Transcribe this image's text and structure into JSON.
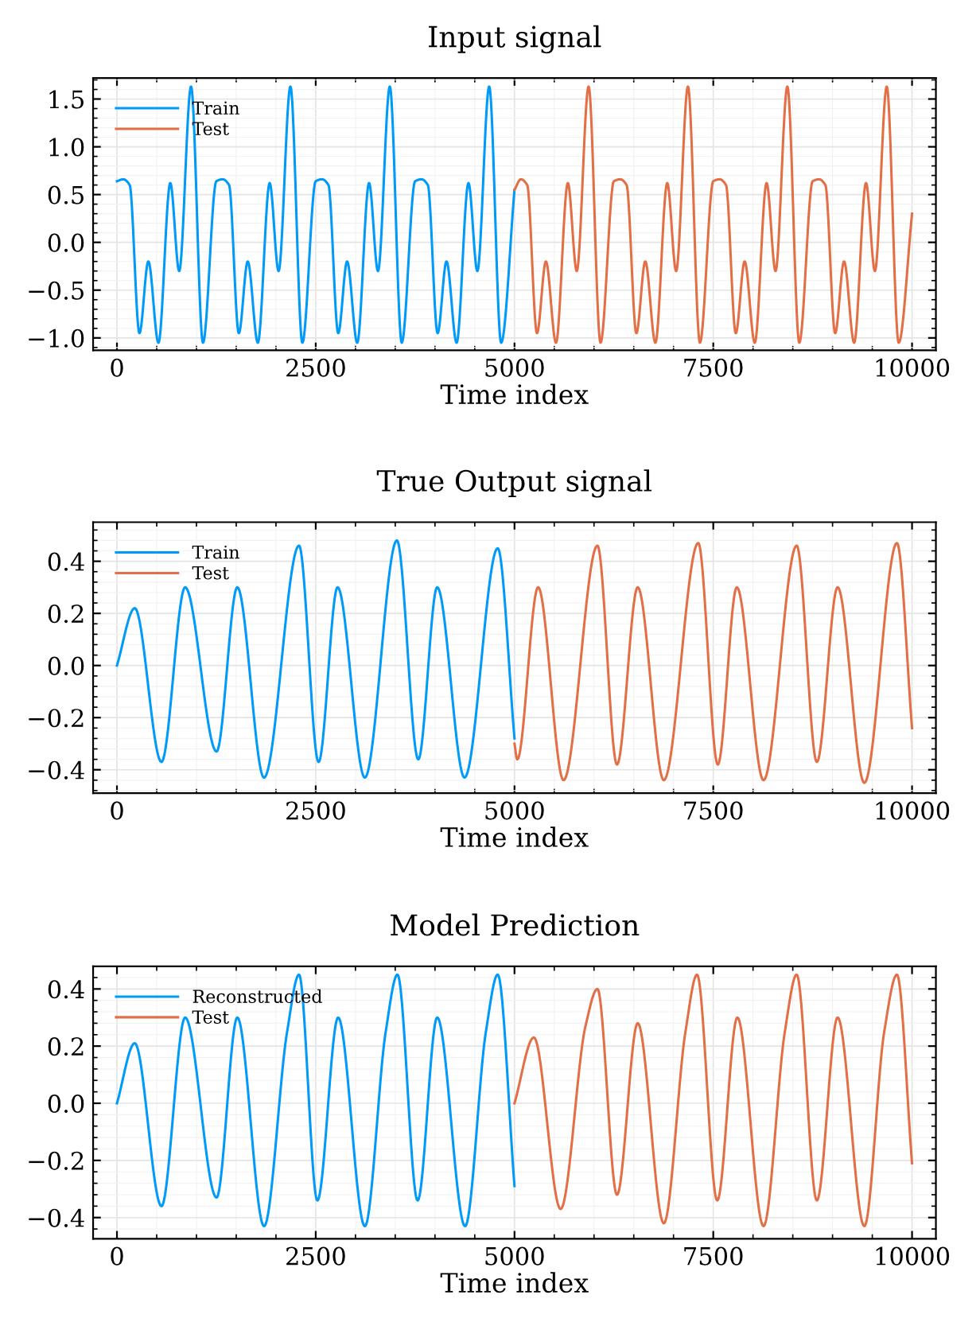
{
  "chart_data": [
    {
      "type": "line",
      "title": "Input signal",
      "xlabel": "Time index",
      "xlim": [
        -300,
        10300
      ],
      "ylim": [
        -1.13,
        1.72
      ],
      "xticks": [
        0,
        2500,
        5000,
        7500,
        10000
      ],
      "yticks": [
        {
          "value": -1.0,
          "label": "−1.0"
        },
        {
          "value": -0.5,
          "label": "−0.5"
        },
        {
          "value": 0.0,
          "label": "0.0"
        },
        {
          "value": 0.5,
          "label": "0.5"
        },
        {
          "value": 1.0,
          "label": "1.0"
        },
        {
          "value": 1.5,
          "label": "1.5"
        }
      ],
      "grid": true,
      "legend": "top left",
      "line_style": "solid",
      "series": [
        {
          "name": "Train",
          "color": "#009af9",
          "x": [
            0,
            80,
            160,
            283,
            395,
            522,
            671,
            783,
            932,
            1082,
            1250,
            1330,
            1410,
            1533,
            1645,
            1772,
            1921,
            2033,
            2182,
            2332,
            2500,
            2580,
            2660,
            2783,
            2895,
            3022,
            3171,
            3283,
            3432,
            3582,
            3750,
            3830,
            3910,
            4033,
            4145,
            4272,
            4421,
            4533,
            4682,
            4832,
            5000
          ],
          "values": [
            0.64,
            0.66,
            0.6,
            -0.95,
            -0.2,
            -1.05,
            0.62,
            -0.3,
            1.63,
            -1.05,
            0.64,
            0.66,
            0.6,
            -0.95,
            -0.2,
            -1.05,
            0.62,
            -0.3,
            1.63,
            -1.05,
            0.64,
            0.66,
            0.6,
            -0.95,
            -0.2,
            -1.05,
            0.62,
            -0.3,
            1.63,
            -1.05,
            0.64,
            0.66,
            0.6,
            -0.95,
            -0.2,
            -1.05,
            0.62,
            -0.3,
            1.63,
            -1.05,
            0.55
          ]
        },
        {
          "name": "Test",
          "color": "#e26f46",
          "x": [
            5000,
            5080,
            5160,
            5283,
            5395,
            5522,
            5671,
            5783,
            5932,
            6082,
            6250,
            6330,
            6410,
            6533,
            6645,
            6772,
            6921,
            7033,
            7182,
            7332,
            7500,
            7580,
            7660,
            7783,
            7895,
            8022,
            8171,
            8283,
            8432,
            8582,
            8750,
            8830,
            8910,
            9033,
            9145,
            9272,
            9421,
            9533,
            9682,
            9832,
            10000
          ],
          "values": [
            0.55,
            0.66,
            0.6,
            -0.95,
            -0.2,
            -1.05,
            0.62,
            -0.3,
            1.63,
            -1.05,
            0.64,
            0.66,
            0.6,
            -0.95,
            -0.2,
            -1.05,
            0.62,
            -0.3,
            1.63,
            -1.05,
            0.64,
            0.66,
            0.6,
            -0.95,
            -0.2,
            -1.05,
            0.62,
            -0.3,
            1.63,
            -1.05,
            0.64,
            0.66,
            0.6,
            -0.95,
            -0.2,
            -1.05,
            0.62,
            -0.3,
            1.63,
            -1.05,
            0.3
          ]
        }
      ]
    },
    {
      "type": "line",
      "title": "True Output signal",
      "xlabel": "Time index",
      "xlim": [
        -300,
        10300
      ],
      "ylim": [
        -0.49,
        0.55
      ],
      "xticks": [
        0,
        2500,
        5000,
        7500,
        10000
      ],
      "yticks": [
        {
          "value": -0.4,
          "label": "−0.4"
        },
        {
          "value": -0.2,
          "label": "−0.2"
        },
        {
          "value": 0.0,
          "label": "0.0"
        },
        {
          "value": 0.2,
          "label": "0.2"
        },
        {
          "value": 0.4,
          "label": "0.4"
        }
      ],
      "grid": true,
      "legend": "top left",
      "line_style": "solid",
      "series": [
        {
          "name": "Train",
          "color": "#009af9",
          "x": [
            0,
            224,
            560,
            858,
            1253,
            1514,
            1850,
            2290,
            2536,
            2775,
            3118,
            3521,
            3790,
            4028,
            4372,
            4789,
            5000
          ],
          "values": [
            0.0,
            0.22,
            -0.37,
            0.3,
            -0.33,
            0.3,
            -0.43,
            0.46,
            -0.37,
            0.3,
            -0.43,
            0.48,
            -0.36,
            0.3,
            -0.43,
            0.45,
            -0.28
          ]
        },
        {
          "name": "Test",
          "color": "#e26f46",
          "x": [
            5000,
            5035,
            5297,
            5617,
            6043,
            6289,
            6550,
            6878,
            7311,
            7557,
            7796,
            8132,
            8549,
            8803,
            9064,
            9400,
            9810,
            10000
          ],
          "values": [
            -0.3,
            -0.36,
            0.3,
            -0.44,
            0.46,
            -0.38,
            0.3,
            -0.44,
            0.47,
            -0.38,
            0.3,
            -0.44,
            0.46,
            -0.37,
            0.3,
            -0.45,
            0.47,
            -0.24
          ]
        }
      ]
    },
    {
      "type": "line",
      "title": "Model Prediction",
      "xlabel": "Time index",
      "xlim": [
        -300,
        10300
      ],
      "ylim": [
        -0.474,
        0.479
      ],
      "xticks": [
        0,
        2500,
        5000,
        7500,
        10000
      ],
      "yticks": [
        {
          "value": -0.4,
          "label": "−0.4"
        },
        {
          "value": -0.2,
          "label": "−0.2"
        },
        {
          "value": 0.0,
          "label": "0.0"
        },
        {
          "value": 0.2,
          "label": "0.2"
        },
        {
          "value": 0.4,
          "label": "0.4"
        }
      ],
      "grid": true,
      "legend": "top left",
      "line_style": "solid",
      "series": [
        {
          "name": "Reconstructed",
          "color": "#009af9",
          "x": [
            0,
            224,
            560,
            858,
            1253,
            1514,
            1850,
            2140,
            2290,
            2521,
            2782,
            3118,
            3380,
            3528,
            3782,
            4028,
            4379,
            4640,
            4789,
            5000
          ],
          "values": [
            0.0,
            0.21,
            -0.36,
            0.3,
            -0.33,
            0.3,
            -0.43,
            0.25,
            0.45,
            -0.34,
            0.3,
            -0.43,
            0.25,
            0.45,
            -0.34,
            0.3,
            -0.43,
            0.25,
            0.45,
            -0.29
          ]
        },
        {
          "name": "Test",
          "color": "#e26f46",
          "x": [
            5000,
            5244,
            5580,
            5893,
            6043,
            6289,
            6550,
            6878,
            7150,
            7296,
            7550,
            7803,
            8132,
            8400,
            8549,
            8803,
            9064,
            9400,
            9650,
            9810,
            10000
          ],
          "values": [
            0.0,
            0.23,
            -0.37,
            0.27,
            0.4,
            -0.32,
            0.28,
            -0.42,
            0.25,
            0.45,
            -0.34,
            0.3,
            -0.43,
            0.25,
            0.45,
            -0.34,
            0.3,
            -0.43,
            0.25,
            0.45,
            -0.21
          ]
        }
      ]
    }
  ]
}
